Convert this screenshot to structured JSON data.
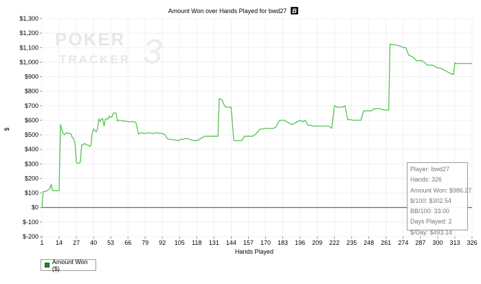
{
  "chart_data": {
    "type": "line",
    "title": "Amount Won over Hands Played for bwd27",
    "title_badge": "B",
    "xlabel": "Hands Played",
    "ylabel": "$",
    "xlim": [
      1,
      326
    ],
    "ylim": [
      -200,
      1300
    ],
    "x_ticks": [
      1,
      14,
      27,
      40,
      53,
      66,
      79,
      92,
      105,
      118,
      131,
      144,
      157,
      170,
      183,
      196,
      209,
      222,
      235,
      248,
      261,
      274,
      287,
      300,
      313,
      326
    ],
    "y_ticks": [
      -200,
      -100,
      0,
      100,
      200,
      300,
      400,
      500,
      600,
      700,
      800,
      900,
      1000,
      1100,
      1200,
      1300
    ],
    "y_tick_labels": [
      "$-200",
      "$-100",
      "$0",
      "$100",
      "$200",
      "$300",
      "$400",
      "$500",
      "$600",
      "$700",
      "$800",
      "$900",
      "$1,000",
      "$1,100",
      "$1,200",
      "$1,300"
    ],
    "grid": true,
    "legend_position": "bottom-left",
    "series": [
      {
        "name": "Amount Won ($)",
        "color": "#53c24f",
        "x": [
          1,
          2,
          3,
          5,
          7,
          8,
          9,
          10,
          11,
          12,
          13,
          14,
          15,
          16,
          17,
          18,
          19,
          20,
          21,
          22,
          23,
          24,
          25,
          26,
          27,
          28,
          29,
          30,
          31,
          32,
          33,
          34,
          35,
          36,
          37,
          38,
          39,
          40,
          41,
          42,
          43,
          44,
          45,
          46,
          47,
          48,
          49,
          50,
          51,
          52,
          53,
          54,
          55,
          56,
          57,
          58,
          59,
          60,
          62,
          64,
          66,
          68,
          70,
          72,
          74,
          76,
          78,
          79,
          80,
          82,
          84,
          86,
          88,
          90,
          92,
          94,
          96,
          98,
          100,
          102,
          104,
          106,
          108,
          110,
          112,
          114,
          116,
          118,
          120,
          122,
          124,
          126,
          128,
          130,
          131,
          132,
          133,
          134,
          135,
          136,
          137,
          138,
          139,
          140,
          141,
          142,
          144,
          146,
          147,
          148,
          149,
          150,
          152,
          154,
          156,
          158,
          160,
          162,
          164,
          166,
          168,
          170,
          172,
          174,
          176,
          178,
          180,
          182,
          184,
          186,
          188,
          190,
          192,
          194,
          196,
          198,
          200,
          202,
          204,
          206,
          208,
          210,
          212,
          214,
          216,
          218,
          219,
          220,
          222,
          224,
          226,
          228,
          230,
          232,
          234,
          236,
          238,
          240,
          242,
          244,
          246,
          248,
          250,
          252,
          254,
          256,
          258,
          260,
          262,
          263,
          264,
          266,
          268,
          270,
          272,
          274,
          276,
          278,
          280,
          282,
          284,
          286,
          288,
          290,
          292,
          294,
          296,
          298,
          300,
          302,
          304,
          306,
          308,
          310,
          312,
          313,
          314,
          316,
          318,
          320,
          322,
          324,
          326
        ],
        "y": [
          0,
          110,
          110,
          115,
          130,
          160,
          115,
          115,
          115,
          115,
          115,
          115,
          570,
          540,
          510,
          500,
          510,
          515,
          510,
          510,
          505,
          480,
          475,
          440,
          310,
          305,
          305,
          310,
          430,
          430,
          440,
          435,
          430,
          430,
          420,
          425,
          510,
          540,
          530,
          520,
          540,
          610,
          590,
          610,
          610,
          560,
          610,
          610,
          610,
          630,
          620,
          625,
          650,
          650,
          650,
          595,
          600,
          600,
          595,
          595,
          590,
          590,
          590,
          585,
          505,
          515,
          510,
          510,
          510,
          515,
          510,
          510,
          515,
          510,
          510,
          500,
          470,
          470,
          465,
          465,
          460,
          470,
          470,
          475,
          470,
          465,
          460,
          460,
          470,
          480,
          490,
          490,
          490,
          490,
          490,
          490,
          490,
          490,
          750,
          745,
          740,
          720,
          700,
          690,
          690,
          690,
          690,
          460,
          460,
          460,
          460,
          460,
          460,
          490,
          490,
          490,
          490,
          500,
          520,
          540,
          540,
          545,
          545,
          545,
          545,
          555,
          595,
          600,
          600,
          590,
          580,
          570,
          580,
          590,
          600,
          590,
          600,
          565,
          565,
          560,
          560,
          560,
          560,
          560,
          560,
          560,
          550,
          545,
          700,
          690,
          690,
          690,
          700,
          605,
          605,
          600,
          600,
          600,
          600,
          665,
          665,
          665,
          665,
          680,
          680,
          680,
          675,
          670,
          670,
          670,
          1125,
          1120,
          1120,
          1115,
          1110,
          1100,
          1100,
          1050,
          1040,
          1030,
          1010,
          1010,
          1010,
          1000,
          980,
          980,
          980,
          970,
          960,
          960,
          950,
          940,
          930,
          920,
          915,
          995,
          990,
          990,
          990,
          990,
          990,
          990,
          990
        ]
      }
    ]
  },
  "stats": {
    "player": "Player: bwd27",
    "hands": "Hands: 326",
    "amount_won": "Amount Won: $986.27",
    "per_100": "$/100: $302.54",
    "bb_per_100": "BB/100: 33.00",
    "days_played": "Days Played: 2",
    "per_day": "$/Day: $493.14"
  },
  "legend": {
    "label": "Amount Won ($)",
    "swatch_color": "#1f8a2a"
  },
  "watermark": {
    "line1": "POKER",
    "line2": "TRACKER",
    "version": "3"
  }
}
